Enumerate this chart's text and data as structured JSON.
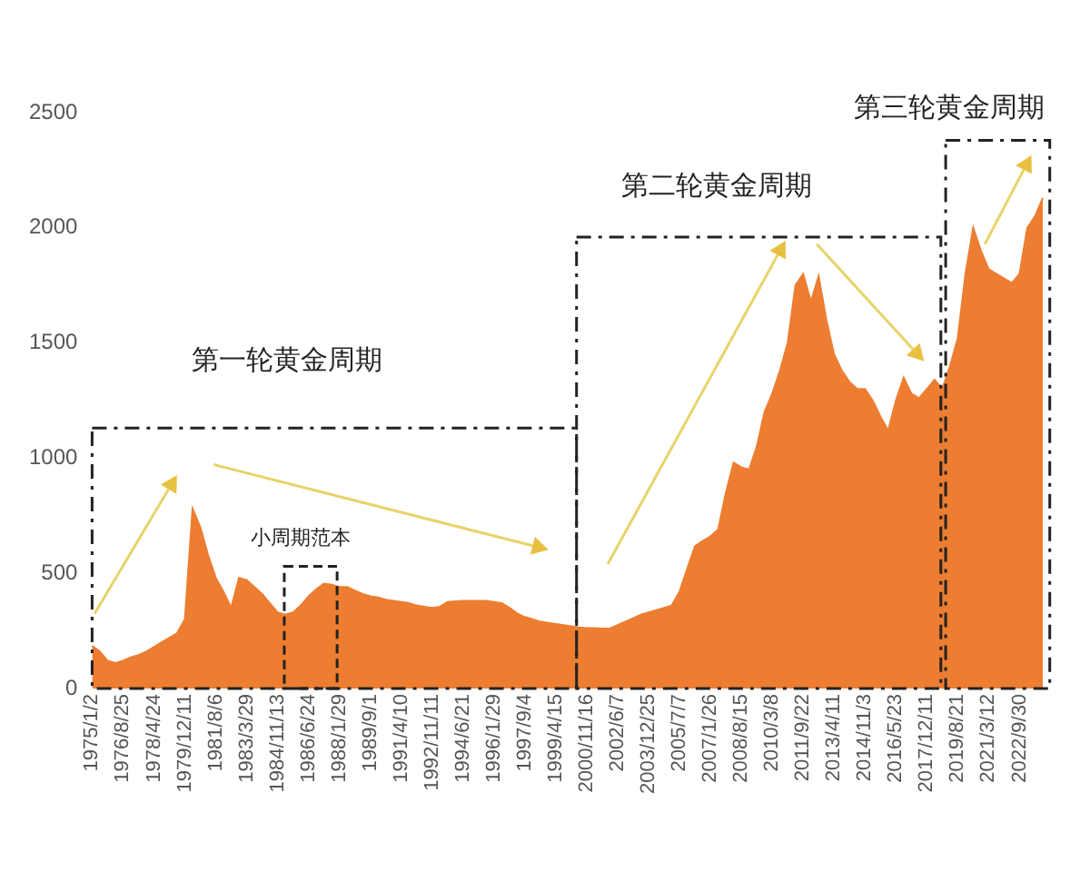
{
  "chart_data": {
    "type": "area",
    "categories": [
      "1975/1/2",
      null,
      null,
      null,
      "1976/8/25",
      null,
      null,
      null,
      "1978/4/24",
      null,
      null,
      null,
      "1979/12/11",
      null,
      null,
      null,
      "1981/8/6",
      null,
      null,
      null,
      "1983/3/29",
      null,
      null,
      null,
      "1984/11/13",
      null,
      null,
      null,
      "1986/6/24",
      null,
      null,
      null,
      "1988/1/29",
      null,
      null,
      null,
      "1989/9/1",
      null,
      null,
      null,
      "1991/4/10",
      null,
      null,
      null,
      "1992/11/11",
      null,
      null,
      null,
      "1994/6/21",
      null,
      null,
      null,
      "1996/1/29",
      null,
      null,
      null,
      "1997/9/4",
      null,
      null,
      null,
      "1999/4/15",
      null,
      null,
      null,
      "2000/11/16",
      null,
      null,
      null,
      "2002/6/7",
      null,
      null,
      null,
      "2003/12/25",
      null,
      null,
      null,
      "2005/7/7",
      null,
      null,
      null,
      "2007/1/26",
      null,
      null,
      null,
      "2008/8/15",
      null,
      null,
      null,
      "2010/3/8",
      null,
      null,
      null,
      "2011/9/22",
      null,
      null,
      null,
      "2013/4/11",
      null,
      null,
      null,
      "2014/11/3",
      null,
      null,
      null,
      "2016/5/23",
      null,
      null,
      null,
      "2017/12/11",
      null,
      null,
      null,
      "2019/8/21",
      null,
      null,
      null,
      "2021/3/12",
      null,
      null,
      null,
      "2022/9/30",
      null,
      null,
      null
    ],
    "values": [
      185,
      160,
      120,
      110,
      120,
      135,
      145,
      160,
      180,
      200,
      220,
      240,
      300,
      780,
      700,
      580,
      480,
      420,
      350,
      480,
      470,
      440,
      410,
      370,
      330,
      320,
      330,
      360,
      400,
      430,
      455,
      450,
      440,
      440,
      425,
      410,
      400,
      395,
      385,
      380,
      375,
      370,
      360,
      355,
      350,
      355,
      375,
      378,
      380,
      380,
      380,
      380,
      375,
      370,
      350,
      325,
      310,
      300,
      290,
      285,
      280,
      275,
      270,
      265,
      262,
      262,
      260,
      260,
      275,
      290,
      305,
      320,
      330,
      340,
      350,
      360,
      420,
      520,
      617,
      640,
      660,
      690,
      850,
      980,
      960,
      950,
      1050,
      1200,
      1280,
      1380,
      1500,
      1750,
      1800,
      1680,
      1790,
      1600,
      1450,
      1380,
      1330,
      1300,
      1300,
      1250,
      1180,
      1120,
      1250,
      1350,
      1280,
      1260,
      1300,
      1340,
      1300,
      1400,
      1520,
      1800,
      2000,
      1900,
      1820,
      1800,
      1780,
      1760,
      1800,
      2000,
      2050,
      2130
    ],
    "color": "#ed7d31",
    "ylim": [
      0,
      2500
    ],
    "yticks": [
      0,
      500,
      1000,
      1500,
      2000,
      2500
    ],
    "grid": false,
    "annotations": [
      "第一轮黄金周期",
      "小周期范本",
      "第二轮黄金周期",
      "第三轮黄金周期"
    ]
  }
}
